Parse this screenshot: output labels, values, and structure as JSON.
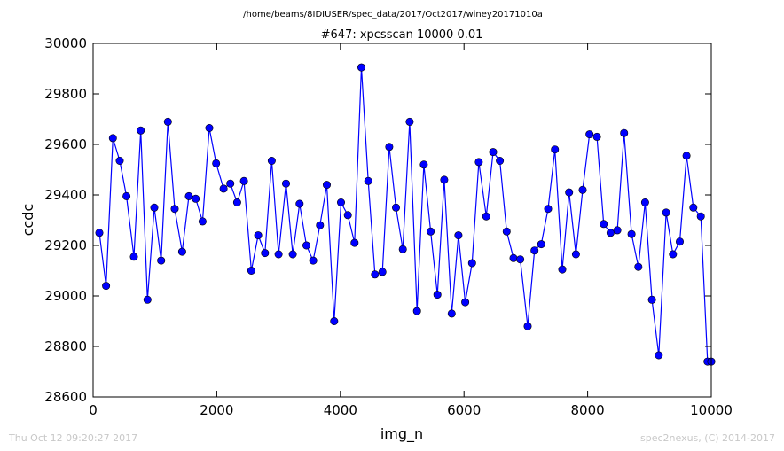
{
  "footer": {
    "timestamp": "Thu Oct 12 09:20:27 2017",
    "credit": "spec2nexus, (C) 2014-2017"
  },
  "chart_data": {
    "type": "line",
    "suptitle": "/home/beams/8IDIUSER/spec_data/2017/Oct2017/winey20171010a",
    "title": "#647: xpcsscan 10000 0.01",
    "xlabel": "img_n",
    "ylabel": "ccdc",
    "xlim": [
      0,
      10000
    ],
    "ylim": [
      28600,
      30000
    ],
    "xticks": [
      0,
      2000,
      4000,
      6000,
      8000,
      10000
    ],
    "yticks": [
      28600,
      28800,
      29000,
      29200,
      29400,
      29600,
      29800,
      30000
    ],
    "xtick_labels": [
      "0",
      "2000",
      "4000",
      "6000",
      "8000",
      "10000"
    ],
    "ytick_labels": [
      "28600",
      "28800",
      "29000",
      "29200",
      "29400",
      "29600",
      "29800",
      "30000"
    ],
    "grid": false,
    "line_color": "#0000ff",
    "marker": "circle",
    "series": [
      {
        "x": [
          100,
          210,
          320,
          430,
          540,
          660,
          770,
          880,
          990,
          1100,
          1210,
          1320,
          1440,
          1550,
          1660,
          1770,
          1880,
          1990,
          2110,
          2220,
          2330,
          2440,
          2560,
          2670,
          2780,
          2890,
          3000,
          3120,
          3230,
          3340,
          3450,
          3560,
          3670,
          3780,
          3900,
          4010,
          4120,
          4230,
          4340,
          4450,
          4560,
          4680,
          4790,
          4900,
          5010,
          5120,
          5240,
          5350,
          5460,
          5570,
          5680,
          5800,
          5910,
          6020,
          6130,
          6240,
          6360,
          6470,
          6580,
          6690,
          6800,
          6910,
          7030,
          7140,
          7250,
          7360,
          7470,
          7590,
          7700,
          7810,
          7920,
          8030,
          8150,
          8260,
          8370,
          8480,
          8590,
          8710,
          8820,
          8930,
          9040,
          9150,
          9270,
          9380,
          9490,
          9600,
          9710,
          9830,
          9940,
          10000
        ],
        "y": [
          29250,
          29040,
          29625,
          29535,
          29395,
          29155,
          29655,
          28985,
          29350,
          29140,
          29690,
          29345,
          29175,
          29395,
          29385,
          29295,
          29665,
          29525,
          29425,
          29445,
          29370,
          29455,
          29100,
          29240,
          29170,
          29535,
          29165,
          29445,
          29165,
          29365,
          29200,
          29140,
          29280,
          29440,
          28900,
          29370,
          29320,
          29210,
          29905,
          29455,
          29085,
          29095,
          29590,
          29350,
          29185,
          29690,
          28940,
          29520,
          29255,
          29005,
          29460,
          28930,
          29240,
          28975,
          29130,
          29530,
          29315,
          29570,
          29535,
          29255,
          29150,
          29145,
          28880,
          29180,
          29205,
          29345,
          29580,
          29105,
          29410,
          29165,
          29420,
          29640,
          29630,
          29285,
          29250,
          29260,
          29645,
          29245,
          29115,
          29370,
          28985,
          28765,
          29330,
          29165,
          29215,
          29555,
          29350,
          29315,
          28740,
          28740
        ]
      }
    ]
  }
}
